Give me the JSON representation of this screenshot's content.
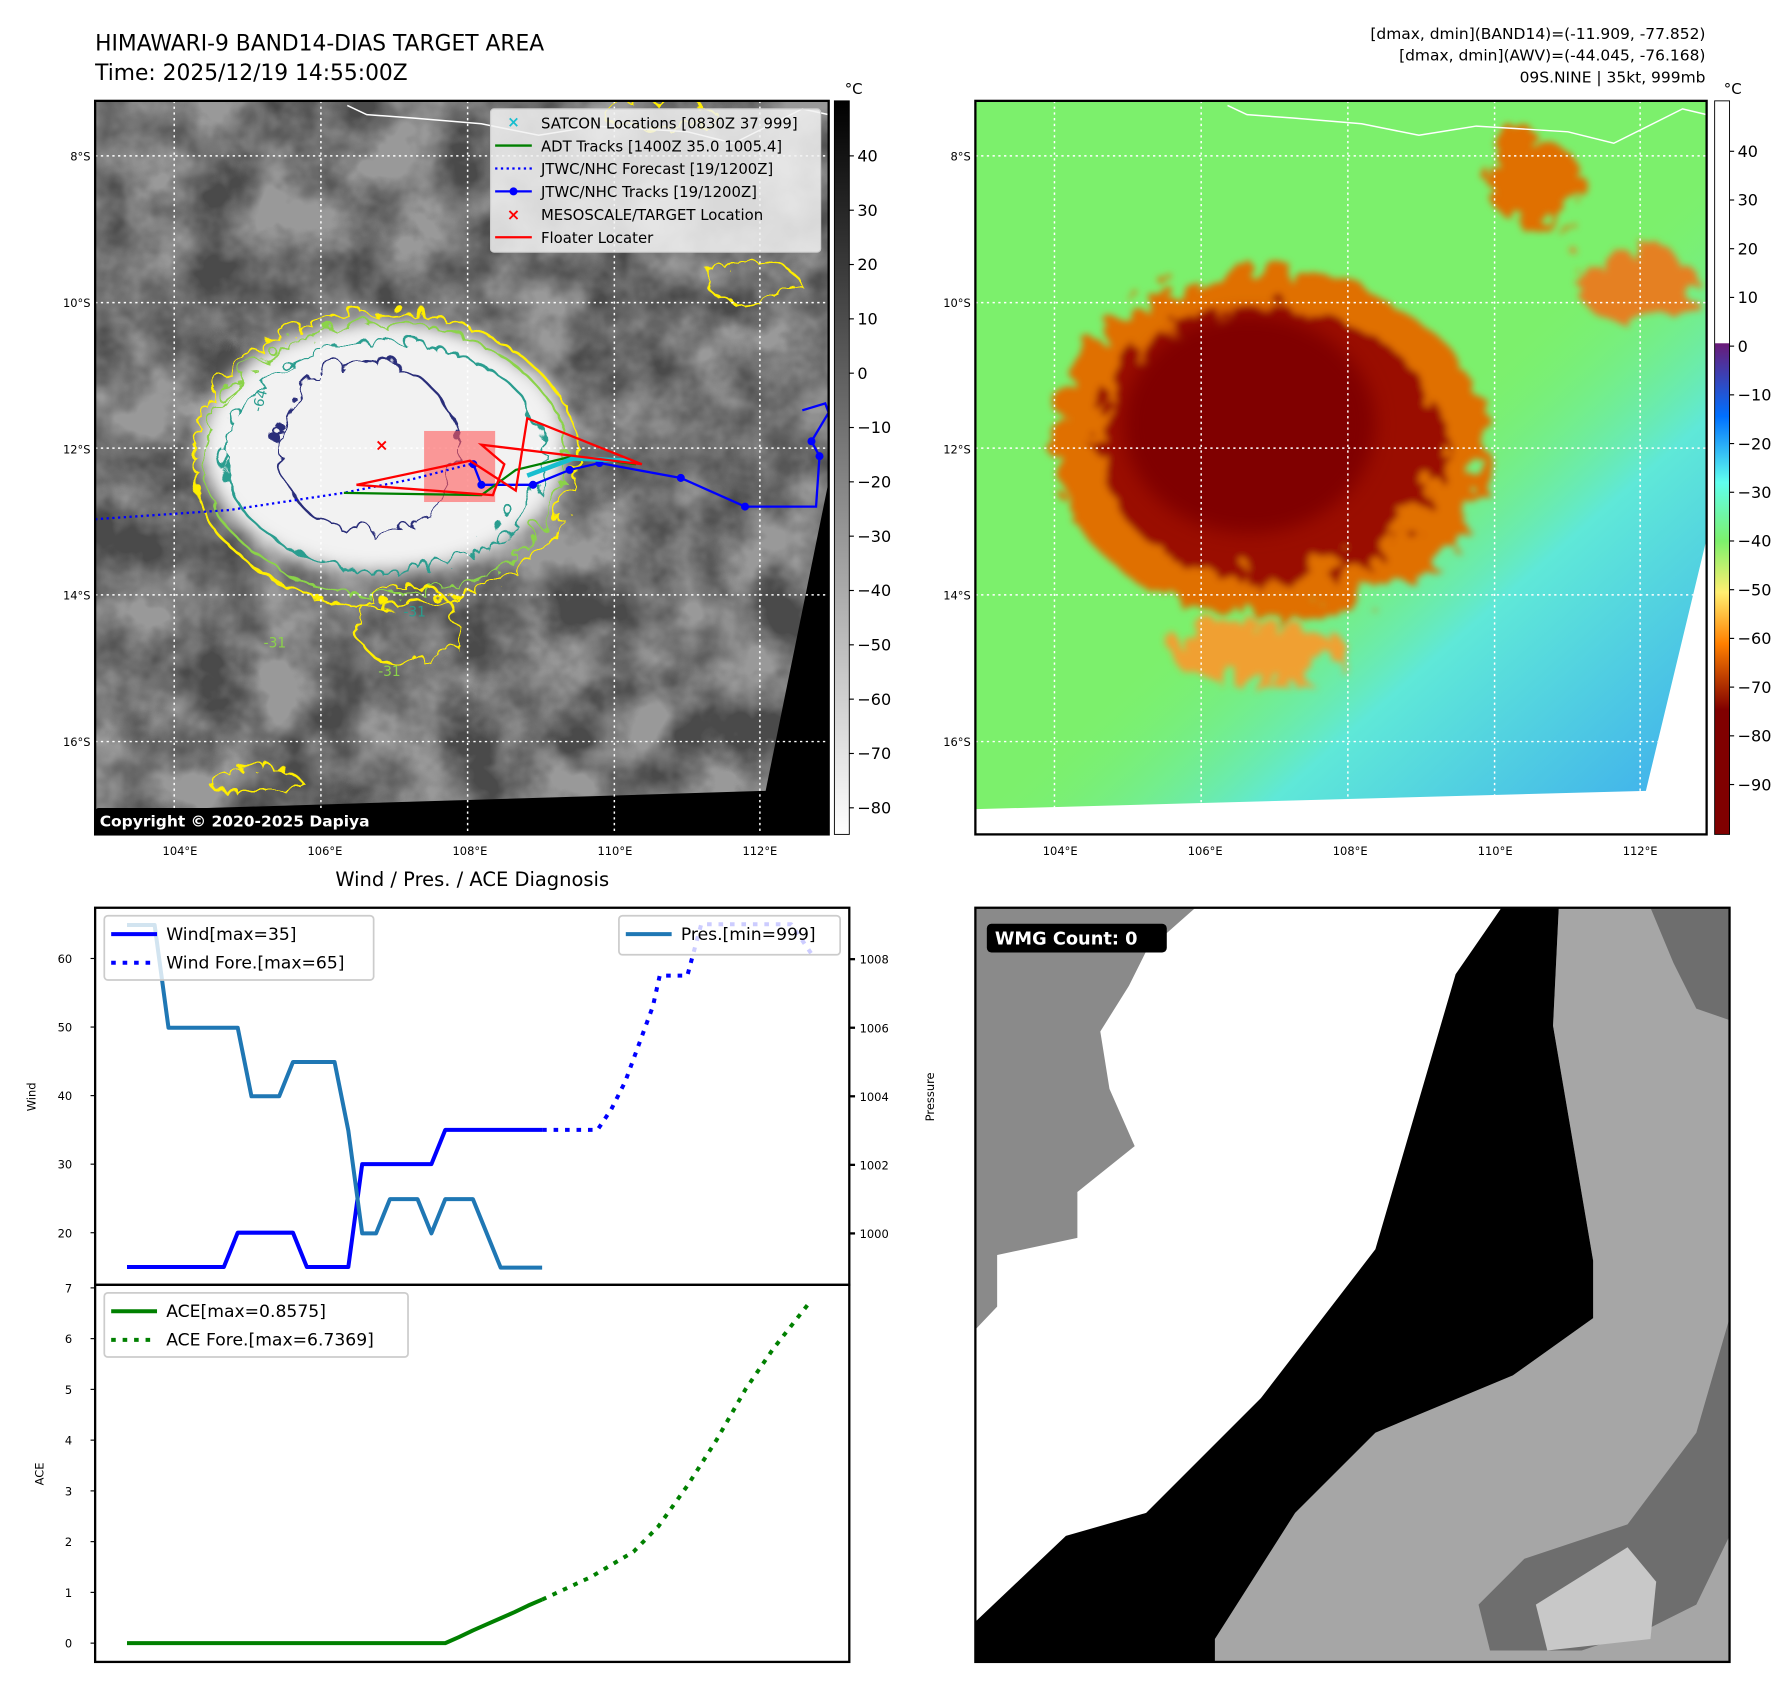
{
  "header": {
    "title_line1": "HIMAWARI-9 BAND14-DIAS TARGET AREA",
    "title_line2": "Time: 2025/12/19 14:55:00Z",
    "info_line1": "[dmax, dmin](BAND14)=(-11.909, -77.852)",
    "info_line2": "[dmax, dmin](AWV)=(-44.045, -76.168)",
    "info_line3": "09S.NINE | 35kt, 999mb"
  },
  "map_left": {
    "lat_labels": [
      "8°S",
      "10°S",
      "12°S",
      "14°S",
      "16°S"
    ],
    "lon_labels": [
      "104°E",
      "106°E",
      "108°E",
      "110°E",
      "112°E"
    ],
    "colorbar_unit": "°C",
    "colorbar_ticks": [
      "40",
      "30",
      "20",
      "10",
      "0",
      "−10",
      "−20",
      "−30",
      "−40",
      "−50",
      "−60",
      "−70",
      "−80"
    ],
    "contour_labels": [
      "-64",
      "-31",
      "-31",
      "-31"
    ],
    "copyright": "Copyright © 2020-2025 Dapiya",
    "legend": [
      {
        "label": "SATCON Locations [0830Z 37 999]",
        "color": "#17becf"
      },
      {
        "label": "ADT Tracks [1400Z 35.0 1005.4]",
        "color": "#008000"
      },
      {
        "label": "JTWC/NHC Forecast [19/1200Z]",
        "color": "#0000ff"
      },
      {
        "label": "JTWC/NHC Tracks [19/1200Z]",
        "color": "#0000ff"
      },
      {
        "label": "MESOSCALE/TARGET Location",
        "color": "#ff0000"
      },
      {
        "label": "Floater Locater",
        "color": "#ff0000"
      }
    ]
  },
  "map_right": {
    "lat_labels": [
      "8°S",
      "10°S",
      "12°S",
      "14°S",
      "16°S"
    ],
    "lon_labels": [
      "104°E",
      "106°E",
      "108°E",
      "110°E",
      "112°E"
    ],
    "colorbar_unit": "°C",
    "colorbar_ticks": [
      "40",
      "30",
      "20",
      "10",
      "0",
      "−10",
      "−20",
      "−30",
      "−40",
      "−50",
      "−60",
      "−70",
      "−80",
      "−90"
    ]
  },
  "wmg": {
    "label": "WMG Count: 0"
  },
  "colors": {
    "wind": "#0000ff",
    "pressure": "#1f77b4",
    "ace": "#008000"
  },
  "chart_data": [
    {
      "type": "line",
      "title": "Wind / Pres. / ACE Diagnosis",
      "ylabel": "Wind",
      "y2label": "Pressure",
      "ylim": [
        12.4,
        67.4
      ],
      "y2lim": [
        998.5,
        1009.5
      ],
      "xlim": [
        -2.3,
        52.2
      ],
      "yticks": [
        20,
        30,
        40,
        50,
        60
      ],
      "y2ticks": [
        1000,
        1002,
        1004,
        1006,
        1008
      ],
      "series": [
        {
          "name": "Wind[max=35]",
          "style": "solid",
          "x": [
            0,
            1,
            2,
            3,
            4,
            5,
            6,
            7,
            8,
            9,
            10,
            11,
            12,
            13,
            14,
            15,
            16,
            17,
            18,
            19,
            20,
            21,
            22,
            23,
            24,
            25,
            26,
            27,
            28,
            29,
            30
          ],
          "values": [
            15,
            15,
            15,
            15,
            15,
            15,
            15,
            15,
            20,
            20,
            20,
            20,
            20,
            15,
            15,
            15,
            15,
            30,
            30,
            30,
            30,
            30,
            30,
            35,
            35,
            35,
            35,
            35,
            35,
            35,
            35
          ]
        },
        {
          "name": "Wind Fore.[max=65]",
          "style": "dotted",
          "x": [
            30,
            34,
            35,
            36,
            37,
            38,
            38.5,
            40.5,
            41.5,
            48,
            49.7
          ],
          "values": [
            35,
            35,
            38,
            42,
            47.5,
            53,
            57.5,
            57.5,
            65,
            65,
            60
          ]
        },
        {
          "name": "Pres.[min=999]",
          "style": "solid",
          "axis": "right",
          "x": [
            0,
            1,
            2,
            3,
            4,
            5,
            6,
            7,
            8,
            9,
            10,
            11,
            12,
            13,
            14,
            15,
            16,
            17,
            18,
            19,
            20,
            21,
            22,
            23,
            24,
            25,
            26,
            27,
            28,
            29,
            30
          ],
          "values": [
            1009,
            1009,
            1009,
            1006,
            1006,
            1006,
            1006,
            1006,
            1006,
            1004,
            1004,
            1004,
            1005,
            1005,
            1005,
            1005,
            1003,
            1000,
            1000,
            1001,
            1001,
            1001,
            1000,
            1001,
            1001,
            1001,
            1000,
            999,
            999,
            999,
            999
          ]
        }
      ]
    },
    {
      "type": "line",
      "ylabel": "ACE",
      "ylim": [
        -0.37,
        7.06
      ],
      "xlim": [
        -2.3,
        52.2
      ],
      "yticks": [
        0,
        1,
        2,
        3,
        4,
        5,
        6,
        7
      ],
      "series": [
        {
          "name": "ACE[max=0.8575]",
          "style": "solid",
          "x": [
            0,
            23,
            24,
            25,
            26,
            27,
            28,
            29,
            30
          ],
          "values": [
            0,
            0,
            0.12,
            0.25,
            0.37,
            0.49,
            0.61,
            0.74,
            0.8575
          ]
        },
        {
          "name": "ACE Fore.[max=6.7369]",
          "style": "dotted",
          "x": [
            30,
            33.5,
            36.6,
            38.4,
            40.5,
            42.6,
            44.7,
            46.7,
            49.4
          ],
          "values": [
            0.8575,
            1.3,
            1.8,
            2.3,
            3.1,
            4.0,
            5.0,
            5.8,
            6.7369
          ]
        }
      ]
    }
  ]
}
